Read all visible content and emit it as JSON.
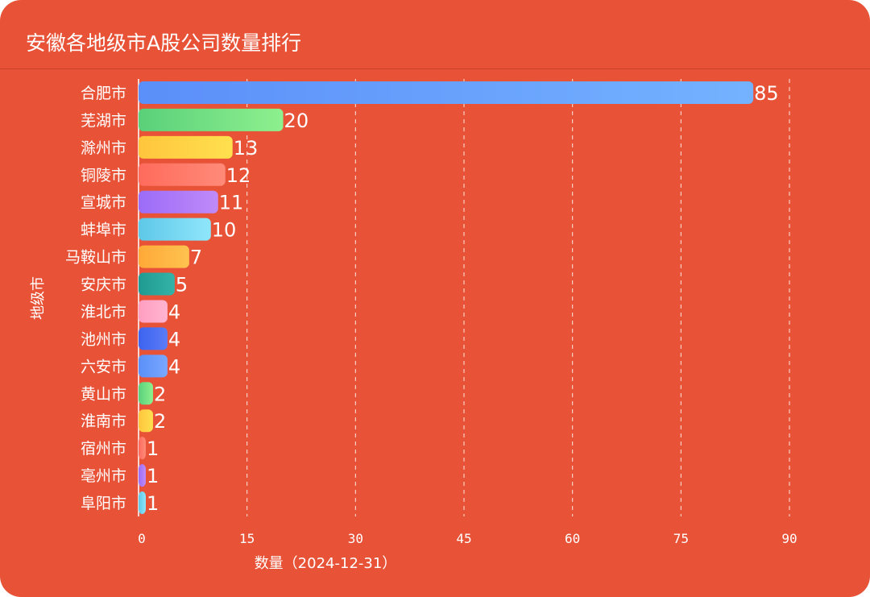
{
  "title": "安徽各地级市A股公司数量排行",
  "chart_data": {
    "type": "bar",
    "orientation": "horizontal",
    "title": "安徽各地级市A股公司数量排行",
    "ylabel": "地级市",
    "xlabel": "数量（2024-12-31）",
    "xlim": [
      0,
      90
    ],
    "xticks": [
      0,
      15,
      30,
      45,
      60,
      75,
      90
    ],
    "grid": true,
    "categories": [
      "合肥市",
      "芜湖市",
      "滁州市",
      "铜陵市",
      "宣城市",
      "蚌埠市",
      "马鞍山市",
      "安庆市",
      "淮北市",
      "池州市",
      "六安市",
      "黄山市",
      "淮南市",
      "宿州市",
      "亳州市",
      "阜阳市"
    ],
    "values": [
      85,
      20,
      13,
      12,
      11,
      10,
      7,
      5,
      4,
      4,
      4,
      2,
      2,
      1,
      1,
      1
    ],
    "colors": [
      [
        "#5b8ff9",
        "#74b2ff"
      ],
      [
        "#5ad07a",
        "#8ef08e"
      ],
      [
        "#ffc53d",
        "#ffe04f"
      ],
      [
        "#ff6b5c",
        "#ff8a78"
      ],
      [
        "#9b6cf7",
        "#c08af9"
      ],
      [
        "#5ec8e8",
        "#8fe6fb"
      ],
      [
        "#ffa938",
        "#ffc24f"
      ],
      [
        "#1f9a92",
        "#35b3a7"
      ],
      [
        "#ff9ec0",
        "#ffb4d0"
      ],
      [
        "#3d63f0",
        "#5b7cf6"
      ],
      [
        "#5b8ff9",
        "#7aa8ff"
      ],
      [
        "#5ad07a",
        "#8ef08e"
      ],
      [
        "#ffc53d",
        "#ffe04f"
      ],
      [
        "#ff6b5c",
        "#ff8a78"
      ],
      [
        "#9b6cf7",
        "#c08af9"
      ],
      [
        "#5ec8e8",
        "#8fe6fb"
      ]
    ]
  }
}
